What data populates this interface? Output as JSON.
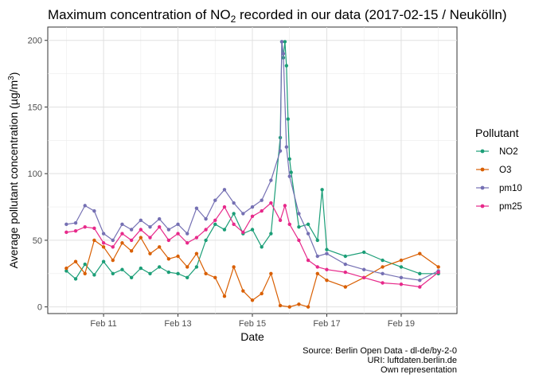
{
  "chart_data": {
    "type": "line",
    "title_prefix": "Maximum concentration of  NO",
    "title_sub": "2",
    "title_suffix": " recorded in our data (2017-02-15 / Neukölln)",
    "xlabel": "Date",
    "ylabel_prefix": "Average pollutant concentration (µg/m",
    "ylabel_sup": "3",
    "ylabel_suffix": ")",
    "x_tick_labels": [
      "Feb 11",
      "Feb 13",
      "Feb 15",
      "Feb 17",
      "Feb 19"
    ],
    "x_ticks": [
      "2017-02-11",
      "2017-02-13",
      "2017-02-15",
      "2017-02-17",
      "2017-02-19"
    ],
    "x_range": [
      "2017-02-09T12:00",
      "2017-02-20T12:00"
    ],
    "y_ticks": [
      0,
      50,
      100,
      150,
      200
    ],
    "ylim": [
      -5,
      210
    ],
    "grid": true,
    "legend_position": "right",
    "legend_title": "Pollutant",
    "caption": [
      "Source: Berlin Open Data - dl-de/by-2-0",
      "URI: luftdaten.berlin.de",
      "Own representation"
    ],
    "series": [
      {
        "name": "NO2",
        "color": "#1b9e77",
        "values": [
          [
            "2017-02-10T00:00",
            27
          ],
          [
            "2017-02-10T06:00",
            21
          ],
          [
            "2017-02-10T12:00",
            32
          ],
          [
            "2017-02-10T18:00",
            24
          ],
          [
            "2017-02-11T00:00",
            34
          ],
          [
            "2017-02-11T06:00",
            25
          ],
          [
            "2017-02-11T12:00",
            28
          ],
          [
            "2017-02-11T18:00",
            22
          ],
          [
            "2017-02-12T00:00",
            29
          ],
          [
            "2017-02-12T06:00",
            25
          ],
          [
            "2017-02-12T12:00",
            30
          ],
          [
            "2017-02-12T18:00",
            26
          ],
          [
            "2017-02-13T00:00",
            25
          ],
          [
            "2017-02-13T06:00",
            22
          ],
          [
            "2017-02-13T12:00",
            30
          ],
          [
            "2017-02-13T18:00",
            50
          ],
          [
            "2017-02-14T00:00",
            62
          ],
          [
            "2017-02-14T06:00",
            58
          ],
          [
            "2017-02-14T12:00",
            70
          ],
          [
            "2017-02-14T18:00",
            55
          ],
          [
            "2017-02-15T00:00",
            58
          ],
          [
            "2017-02-15T06:00",
            45
          ],
          [
            "2017-02-15T12:00",
            55
          ],
          [
            "2017-02-15T18:00",
            127
          ],
          [
            "2017-02-15T19:00",
            199
          ],
          [
            "2017-02-15T20:00",
            187
          ],
          [
            "2017-02-15T21:00",
            199
          ],
          [
            "2017-02-15T22:00",
            181
          ],
          [
            "2017-02-15T23:00",
            141
          ],
          [
            "2017-02-16T00:00",
            111
          ],
          [
            "2017-02-16T01:00",
            101
          ],
          [
            "2017-02-16T06:00",
            60
          ],
          [
            "2017-02-16T12:00",
            62
          ],
          [
            "2017-02-16T18:00",
            50
          ],
          [
            "2017-02-16T21:00",
            88
          ],
          [
            "2017-02-17T00:00",
            43
          ],
          [
            "2017-02-17T12:00",
            38
          ],
          [
            "2017-02-18T00:00",
            41
          ],
          [
            "2017-02-18T12:00",
            35
          ],
          [
            "2017-02-19T00:00",
            30
          ],
          [
            "2017-02-19T12:00",
            25
          ],
          [
            "2017-02-20T00:00",
            25
          ]
        ]
      },
      {
        "name": "O3",
        "color": "#d95f02",
        "values": [
          [
            "2017-02-10T00:00",
            29
          ],
          [
            "2017-02-10T06:00",
            34
          ],
          [
            "2017-02-10T12:00",
            25
          ],
          [
            "2017-02-10T18:00",
            50
          ],
          [
            "2017-02-11T00:00",
            45
          ],
          [
            "2017-02-11T06:00",
            35
          ],
          [
            "2017-02-11T12:00",
            48
          ],
          [
            "2017-02-11T18:00",
            42
          ],
          [
            "2017-02-12T00:00",
            52
          ],
          [
            "2017-02-12T06:00",
            40
          ],
          [
            "2017-02-12T12:00",
            45
          ],
          [
            "2017-02-12T18:00",
            36
          ],
          [
            "2017-02-13T00:00",
            38
          ],
          [
            "2017-02-13T06:00",
            30
          ],
          [
            "2017-02-13T12:00",
            40
          ],
          [
            "2017-02-13T18:00",
            25
          ],
          [
            "2017-02-14T00:00",
            22
          ],
          [
            "2017-02-14T06:00",
            8
          ],
          [
            "2017-02-14T12:00",
            30
          ],
          [
            "2017-02-14T18:00",
            12
          ],
          [
            "2017-02-15T00:00",
            5
          ],
          [
            "2017-02-15T06:00",
            10
          ],
          [
            "2017-02-15T12:00",
            25
          ],
          [
            "2017-02-15T18:00",
            1
          ],
          [
            "2017-02-16T00:00",
            0
          ],
          [
            "2017-02-16T06:00",
            2
          ],
          [
            "2017-02-16T12:00",
            0
          ],
          [
            "2017-02-16T18:00",
            25
          ],
          [
            "2017-02-17T00:00",
            20
          ],
          [
            "2017-02-17T12:00",
            15
          ],
          [
            "2017-02-18T00:00",
            22
          ],
          [
            "2017-02-18T12:00",
            30
          ],
          [
            "2017-02-19T00:00",
            35
          ],
          [
            "2017-02-19T12:00",
            40
          ],
          [
            "2017-02-20T00:00",
            30
          ]
        ]
      },
      {
        "name": "pm10",
        "color": "#7570b3",
        "values": [
          [
            "2017-02-10T00:00",
            62
          ],
          [
            "2017-02-10T06:00",
            63
          ],
          [
            "2017-02-10T12:00",
            76
          ],
          [
            "2017-02-10T18:00",
            72
          ],
          [
            "2017-02-11T00:00",
            55
          ],
          [
            "2017-02-11T06:00",
            50
          ],
          [
            "2017-02-11T12:00",
            62
          ],
          [
            "2017-02-11T18:00",
            58
          ],
          [
            "2017-02-12T00:00",
            65
          ],
          [
            "2017-02-12T06:00",
            60
          ],
          [
            "2017-02-12T12:00",
            66
          ],
          [
            "2017-02-12T18:00",
            58
          ],
          [
            "2017-02-13T00:00",
            62
          ],
          [
            "2017-02-13T06:00",
            55
          ],
          [
            "2017-02-13T12:00",
            74
          ],
          [
            "2017-02-13T18:00",
            66
          ],
          [
            "2017-02-14T00:00",
            80
          ],
          [
            "2017-02-14T06:00",
            88
          ],
          [
            "2017-02-14T12:00",
            78
          ],
          [
            "2017-02-14T18:00",
            70
          ],
          [
            "2017-02-15T00:00",
            75
          ],
          [
            "2017-02-15T06:00",
            80
          ],
          [
            "2017-02-15T12:00",
            95
          ],
          [
            "2017-02-15T18:00",
            117
          ],
          [
            "2017-02-15T19:00",
            199
          ],
          [
            "2017-02-15T20:00",
            190
          ],
          [
            "2017-02-15T22:00",
            120
          ],
          [
            "2017-02-16T00:00",
            98
          ],
          [
            "2017-02-16T06:00",
            70
          ],
          [
            "2017-02-16T12:00",
            55
          ],
          [
            "2017-02-16T18:00",
            38
          ],
          [
            "2017-02-17T00:00",
            40
          ],
          [
            "2017-02-17T12:00",
            32
          ],
          [
            "2017-02-18T00:00",
            28
          ],
          [
            "2017-02-18T12:00",
            25
          ],
          [
            "2017-02-19T00:00",
            22
          ],
          [
            "2017-02-19T12:00",
            20
          ],
          [
            "2017-02-20T00:00",
            27
          ]
        ]
      },
      {
        "name": "pm25",
        "color": "#e7298a",
        "values": [
          [
            "2017-02-10T00:00",
            56
          ],
          [
            "2017-02-10T06:00",
            57
          ],
          [
            "2017-02-10T12:00",
            60
          ],
          [
            "2017-02-10T18:00",
            59
          ],
          [
            "2017-02-11T00:00",
            48
          ],
          [
            "2017-02-11T06:00",
            45
          ],
          [
            "2017-02-11T12:00",
            55
          ],
          [
            "2017-02-11T18:00",
            50
          ],
          [
            "2017-02-12T00:00",
            58
          ],
          [
            "2017-02-12T06:00",
            52
          ],
          [
            "2017-02-12T12:00",
            60
          ],
          [
            "2017-02-12T18:00",
            50
          ],
          [
            "2017-02-13T00:00",
            55
          ],
          [
            "2017-02-13T06:00",
            48
          ],
          [
            "2017-02-13T12:00",
            52
          ],
          [
            "2017-02-13T18:00",
            58
          ],
          [
            "2017-02-14T00:00",
            65
          ],
          [
            "2017-02-14T06:00",
            75
          ],
          [
            "2017-02-14T12:00",
            62
          ],
          [
            "2017-02-14T18:00",
            56
          ],
          [
            "2017-02-15T00:00",
            68
          ],
          [
            "2017-02-15T06:00",
            72
          ],
          [
            "2017-02-15T12:00",
            78
          ],
          [
            "2017-02-15T18:00",
            65
          ],
          [
            "2017-02-15T21:00",
            76
          ],
          [
            "2017-02-16T00:00",
            62
          ],
          [
            "2017-02-16T06:00",
            50
          ],
          [
            "2017-02-16T12:00",
            35
          ],
          [
            "2017-02-16T18:00",
            30
          ],
          [
            "2017-02-17T00:00",
            28
          ],
          [
            "2017-02-17T12:00",
            26
          ],
          [
            "2017-02-18T00:00",
            22
          ],
          [
            "2017-02-18T12:00",
            18
          ],
          [
            "2017-02-19T00:00",
            17
          ],
          [
            "2017-02-19T12:00",
            15
          ],
          [
            "2017-02-20T00:00",
            26
          ]
        ]
      }
    ]
  }
}
